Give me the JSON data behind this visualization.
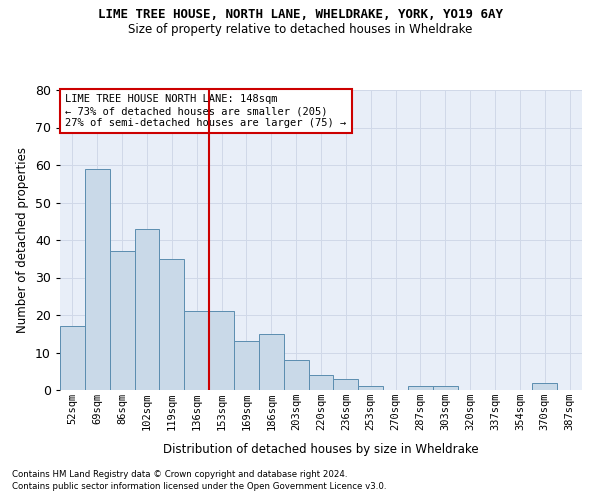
{
  "title": "LIME TREE HOUSE, NORTH LANE, WHELDRAKE, YORK, YO19 6AY",
  "subtitle": "Size of property relative to detached houses in Wheldrake",
  "xlabel": "Distribution of detached houses by size in Wheldrake",
  "ylabel": "Number of detached properties",
  "bar_labels": [
    "52sqm",
    "69sqm",
    "86sqm",
    "102sqm",
    "119sqm",
    "136sqm",
    "153sqm",
    "169sqm",
    "186sqm",
    "203sqm",
    "220sqm",
    "236sqm",
    "253sqm",
    "270sqm",
    "287sqm",
    "303sqm",
    "320sqm",
    "337sqm",
    "354sqm",
    "370sqm",
    "387sqm"
  ],
  "bar_heights": [
    17,
    59,
    37,
    43,
    35,
    21,
    21,
    13,
    15,
    8,
    4,
    3,
    1,
    0,
    1,
    1,
    0,
    0,
    0,
    2,
    0
  ],
  "bar_color": "#c9d9e8",
  "bar_edge_color": "#5b8db0",
  "grid_color": "#d0d8e8",
  "vline_x": 5.5,
  "vline_color": "#cc0000",
  "annotation_title": "LIME TREE HOUSE NORTH LANE: 148sqm",
  "annotation_line1": "← 73% of detached houses are smaller (205)",
  "annotation_line2": "27% of semi-detached houses are larger (75) →",
  "annotation_box_color": "#ffffff",
  "annotation_box_edge": "#cc0000",
  "ylim": [
    0,
    80
  ],
  "yticks": [
    0,
    10,
    20,
    30,
    40,
    50,
    60,
    70,
    80
  ],
  "footnote1": "Contains HM Land Registry data © Crown copyright and database right 2024.",
  "footnote2": "Contains public sector information licensed under the Open Government Licence v3.0.",
  "bg_color": "#e8eef8"
}
